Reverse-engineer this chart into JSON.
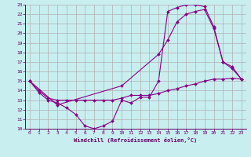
{
  "xlabel": "Windchill (Refroidissement éolien,°C)",
  "bg_color": "#c8eef0",
  "grid_color": "#b0b0b0",
  "line_color": "#880088",
  "xlim": [
    -0.5,
    23.5
  ],
  "ylim": [
    10,
    23
  ],
  "xticks": [
    0,
    1,
    2,
    3,
    4,
    5,
    6,
    7,
    8,
    9,
    10,
    11,
    12,
    13,
    14,
    15,
    16,
    17,
    18,
    19,
    20,
    21,
    22,
    23
  ],
  "yticks": [
    10,
    11,
    12,
    13,
    14,
    15,
    16,
    17,
    18,
    19,
    20,
    21,
    22,
    23
  ],
  "series": [
    {
      "x": [
        0,
        1,
        2,
        3,
        4,
        5,
        6,
        7,
        8,
        9,
        10,
        11,
        12,
        13,
        14,
        15,
        16,
        17,
        18,
        19,
        20,
        21,
        22,
        23
      ],
      "y": [
        15,
        13.8,
        13,
        12.7,
        12.2,
        11.5,
        10.3,
        10.0,
        10.3,
        10.8,
        13.0,
        12.7,
        13.3,
        13.3,
        15.0,
        22.3,
        22.7,
        23.0,
        23.0,
        22.8,
        20.7,
        17.0,
        16.3,
        15.2
      ]
    },
    {
      "x": [
        0,
        1,
        2,
        3,
        4,
        5,
        6,
        7,
        8,
        9,
        10,
        11,
        12,
        13,
        14,
        15,
        16,
        17,
        18,
        19,
        20,
        21,
        22,
        23
      ],
      "y": [
        15,
        14.0,
        13.2,
        13.0,
        13.0,
        13.0,
        13.0,
        13.0,
        13.0,
        13.0,
        13.2,
        13.5,
        13.5,
        13.5,
        13.7,
        14.0,
        14.2,
        14.5,
        14.7,
        15.0,
        15.2,
        15.2,
        15.3,
        15.2
      ]
    },
    {
      "x": [
        0,
        3,
        10,
        14,
        15,
        16,
        17,
        18,
        19,
        20,
        21,
        22,
        23
      ],
      "y": [
        15,
        12.5,
        14.5,
        17.8,
        19.3,
        21.2,
        22.0,
        22.3,
        22.5,
        20.5,
        17.0,
        16.5,
        15.2
      ]
    }
  ]
}
